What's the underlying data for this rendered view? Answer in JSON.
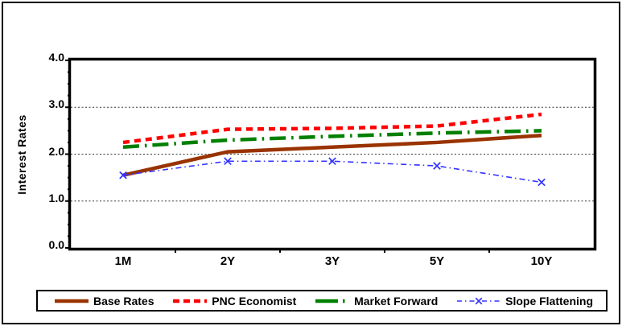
{
  "chart_data": {
    "type": "line",
    "title": "",
    "xlabel": "",
    "ylabel": "Interest Rates",
    "categories": [
      "1M",
      "2Y",
      "3Y",
      "5Y",
      "10Y"
    ],
    "ylim": [
      0.0,
      4.0
    ],
    "ytick_step": 1.0,
    "ytick_minor_step": 0.25,
    "ytick_labels": [
      "0.0",
      "1.0",
      "2.0",
      "3.0",
      "4.0"
    ],
    "gridlines": {
      "horizontal_at": [
        1.0,
        2.0,
        3.0
      ],
      "style": "dotted",
      "color": "#333333"
    },
    "legend_position": "bottom-boxed",
    "plot_border_color": "#000000",
    "background_color": "#FFFFFF",
    "series": [
      {
        "name": "Base Rates",
        "color": "#993300",
        "style": "solid",
        "width": 4.5,
        "marker": "none",
        "values": [
          1.55,
          2.05,
          2.15,
          2.25,
          2.4
        ]
      },
      {
        "name": "PNC Economist",
        "color": "#FF0000",
        "style": "dash",
        "width": 4.5,
        "marker": "none",
        "values": [
          2.25,
          2.53,
          2.55,
          2.6,
          2.85
        ]
      },
      {
        "name": "Market Forward",
        "color": "#008000",
        "style": "long-dash-dot",
        "width": 4.5,
        "marker": "none",
        "values": [
          2.15,
          2.3,
          2.38,
          2.45,
          2.5
        ]
      },
      {
        "name": "Slope Flattening",
        "color": "#3333FF",
        "style": "dash-dot",
        "width": 1.6,
        "marker": "x",
        "values": [
          1.55,
          1.85,
          1.85,
          1.75,
          1.4
        ]
      }
    ]
  }
}
